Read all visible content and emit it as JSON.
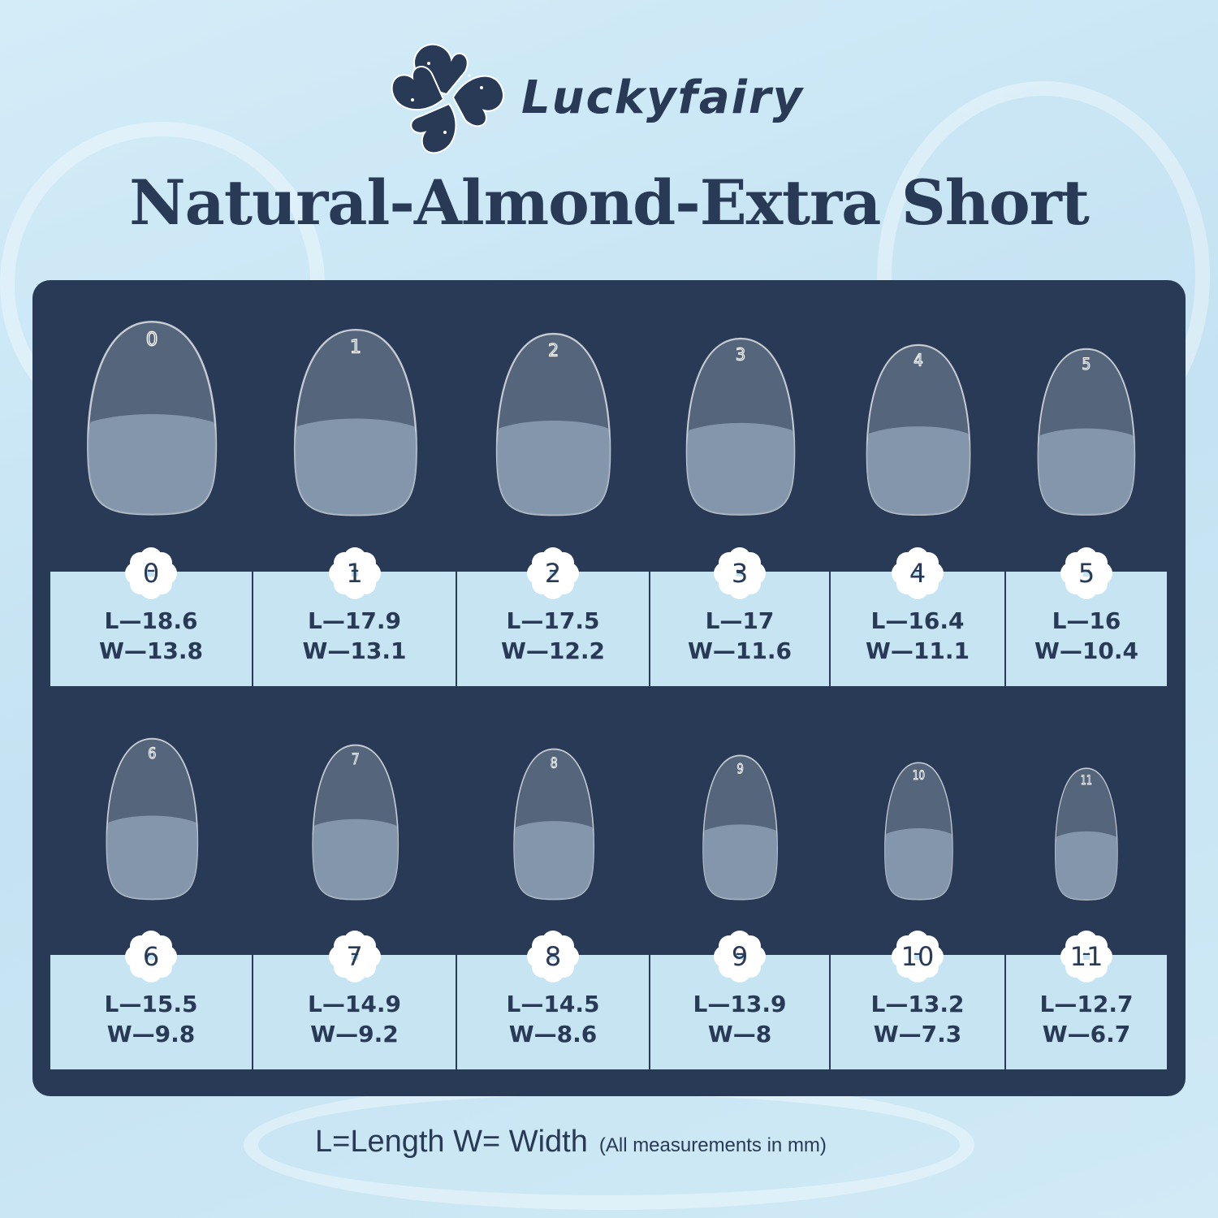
{
  "brand": {
    "name": "Luckyfairy",
    "logo_icon": "clover-star-icon"
  },
  "title": "Natural-Almond-Extra Short",
  "colors": {
    "navy": "#283a55",
    "cell": "#c7e4f3",
    "background": "#cfe8f5"
  },
  "sizes": [
    {
      "num": "0",
      "L": "L—18.6",
      "W": "W—13.8",
      "l": 18.6,
      "w": 13.8
    },
    {
      "num": "1",
      "L": "L—17.9",
      "W": "W—13.1",
      "l": 17.9,
      "w": 13.1
    },
    {
      "num": "2",
      "L": "L—17.5",
      "W": "W—12.2",
      "l": 17.5,
      "w": 12.2
    },
    {
      "num": "3",
      "L": "L—17",
      "W": "W—11.6",
      "l": 17,
      "w": 11.6
    },
    {
      "num": "4",
      "L": "L—16.4",
      "W": "W—11.1",
      "l": 16.4,
      "w": 11.1
    },
    {
      "num": "5",
      "L": "L—16",
      "W": "W—10.4",
      "l": 16,
      "w": 10.4
    },
    {
      "num": "6",
      "L": "L—15.5",
      "W": "W—9.8",
      "l": 15.5,
      "w": 9.8
    },
    {
      "num": "7",
      "L": "L—14.9",
      "W": "W—9.2",
      "l": 14.9,
      "w": 9.2
    },
    {
      "num": "8",
      "L": "L—14.5",
      "W": "W—8.6",
      "l": 14.5,
      "w": 8.6
    },
    {
      "num": "9",
      "L": "L—13.9",
      "W": "W—8",
      "l": 13.9,
      "w": 8
    },
    {
      "num": "10",
      "L": "L—13.2",
      "W": "W—7.3",
      "l": 13.2,
      "w": 7.3
    },
    {
      "num": "11",
      "L": "L—12.7",
      "W": "W—6.7",
      "l": 12.7,
      "w": 6.7
    }
  ],
  "footer": {
    "legend": "L=Length W= Width",
    "note": "(All measurements in mm)"
  }
}
